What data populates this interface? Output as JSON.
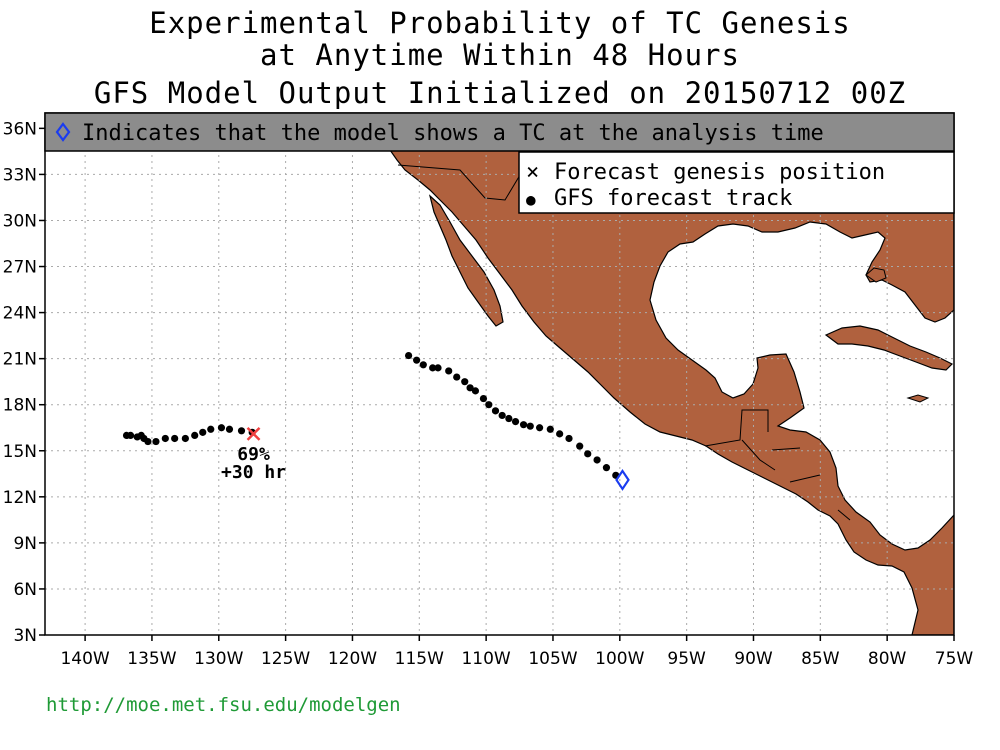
{
  "title": {
    "line1": "Experimental Probability of TC Genesis",
    "line2": "at Anytime Within 48 Hours",
    "line3": "GFS Model Output Initialized on 20150712 00Z"
  },
  "banner": {
    "text": "Indicates that the model shows a TC at the analysis time"
  },
  "legend": [
    {
      "symbol": "×",
      "label": "Forecast genesis position"
    },
    {
      "symbol": "●",
      "label": "GFS forecast track"
    }
  ],
  "map": {
    "lon_range": [
      -143,
      -75
    ],
    "lat_range": [
      3,
      37
    ],
    "x_ticks": [
      {
        "lon": -140,
        "label": "140W"
      },
      {
        "lon": -135,
        "label": "135W"
      },
      {
        "lon": -130,
        "label": "130W"
      },
      {
        "lon": -125,
        "label": "125W"
      },
      {
        "lon": -120,
        "label": "120W"
      },
      {
        "lon": -115,
        "label": "115W"
      },
      {
        "lon": -110,
        "label": "110W"
      },
      {
        "lon": -105,
        "label": "105W"
      },
      {
        "lon": -100,
        "label": "100W"
      },
      {
        "lon": -95,
        "label": "95W"
      },
      {
        "lon": -90,
        "label": "90W"
      },
      {
        "lon": -85,
        "label": "85W"
      },
      {
        "lon": -80,
        "label": "80W"
      },
      {
        "lon": -75,
        "label": "75W"
      }
    ],
    "y_ticks": [
      {
        "lat": 3,
        "label": "3N"
      },
      {
        "lat": 6,
        "label": "6N"
      },
      {
        "lat": 9,
        "label": "9N"
      },
      {
        "lat": 12,
        "label": "12N"
      },
      {
        "lat": 15,
        "label": "15N"
      },
      {
        "lat": 18,
        "label": "18N"
      },
      {
        "lat": 21,
        "label": "21N"
      },
      {
        "lat": 24,
        "label": "24N"
      },
      {
        "lat": 27,
        "label": "27N"
      },
      {
        "lat": 30,
        "label": "30N"
      },
      {
        "lat": 33,
        "label": "33N"
      },
      {
        "lat": 36,
        "label": "36N"
      }
    ],
    "grid": "dotted",
    "colors": {
      "land": "#b0613e",
      "ocean": "#ffffff",
      "banner": "#8c8c8c",
      "genesis_marker": "#f04040",
      "analysis_marker": "#1a3cf0",
      "track": "#000000",
      "url": "#1f9a36"
    }
  },
  "chart_data": {
    "type": "scatter",
    "series": [
      {
        "points": [
          [
            -127.5,
            16.2
          ],
          [
            -128.3,
            16.3
          ],
          [
            -129.2,
            16.4
          ],
          [
            -129.8,
            16.5
          ],
          [
            -130.6,
            16.4
          ],
          [
            -131.2,
            16.2
          ],
          [
            -131.8,
            16.0
          ],
          [
            -132.5,
            15.8
          ],
          [
            -133.3,
            15.8
          ],
          [
            -134.0,
            15.8
          ],
          [
            -134.7,
            15.6
          ],
          [
            -135.3,
            15.6
          ],
          [
            -135.6,
            15.8
          ],
          [
            -136.1,
            15.9
          ],
          [
            -136.6,
            16.0
          ],
          [
            -136.9,
            16.0
          ],
          [
            -135.8,
            16.0
          ]
        ]
      },
      {
        "points": [
          [
            -115.8,
            21.2
          ],
          [
            -115.2,
            20.9
          ],
          [
            -114.7,
            20.6
          ],
          [
            -114.0,
            20.4
          ],
          [
            -113.6,
            20.4
          ],
          [
            -112.8,
            20.2
          ],
          [
            -112.2,
            19.8
          ],
          [
            -111.6,
            19.5
          ],
          [
            -111.2,
            19.1
          ],
          [
            -110.8,
            18.9
          ],
          [
            -110.2,
            18.4
          ],
          [
            -109.8,
            18.0
          ],
          [
            -109.3,
            17.6
          ],
          [
            -108.8,
            17.3
          ],
          [
            -108.3,
            17.1
          ],
          [
            -107.8,
            16.9
          ],
          [
            -107.2,
            16.7
          ],
          [
            -106.7,
            16.6
          ],
          [
            -106.0,
            16.5
          ],
          [
            -105.2,
            16.4
          ],
          [
            -104.5,
            16.1
          ],
          [
            -103.8,
            15.8
          ],
          [
            -103.0,
            15.3
          ],
          [
            -102.4,
            14.8
          ],
          [
            -101.7,
            14.4
          ],
          [
            -101.0,
            13.9
          ],
          [
            -100.3,
            13.4
          ]
        ]
      }
    ],
    "genesis": [
      {
        "lon": -127.4,
        "lat": 16.1,
        "probability": "69%",
        "lead": "+30 hr"
      }
    ],
    "analysis_tc": [
      {
        "lon": -99.8,
        "lat": 13.1
      }
    ]
  },
  "footer": {
    "url": "http://moe.met.fsu.edu/modelgen"
  }
}
